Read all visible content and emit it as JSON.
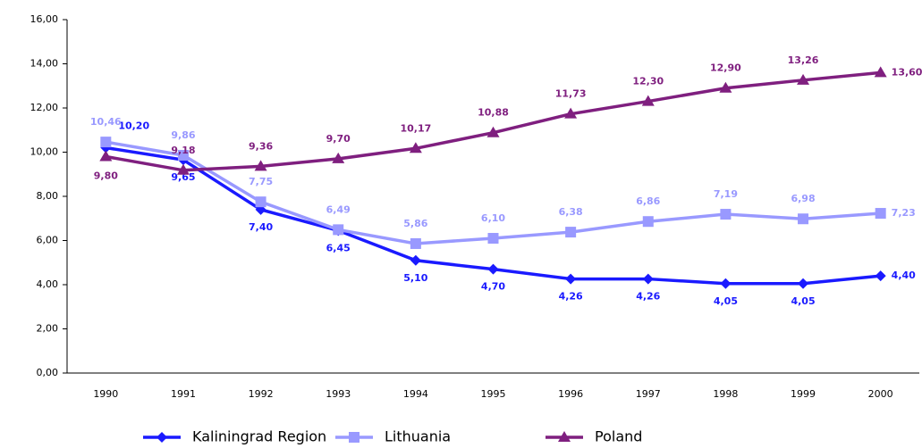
{
  "chart_data": {
    "type": "line",
    "categories": [
      "1990",
      "1991",
      "1992",
      "1993",
      "1994",
      "1995",
      "1996",
      "1997",
      "1998",
      "1999",
      "2000"
    ],
    "ylim": [
      0,
      16
    ],
    "yticks": [
      {
        "value": 0,
        "label": "0,00"
      },
      {
        "value": 2,
        "label": "2,00"
      },
      {
        "value": 4,
        "label": "4,00"
      },
      {
        "value": 6,
        "label": "6,00"
      },
      {
        "value": 8,
        "label": "8,00"
      },
      {
        "value": 10,
        "label": "10,00"
      },
      {
        "value": 12,
        "label": "12,00"
      },
      {
        "value": 14,
        "label": "14,00"
      },
      {
        "value": 16,
        "label": "16,00"
      }
    ],
    "legend": "bottom",
    "series": [
      {
        "name": "Kaliningrad Region",
        "color": "#1a1aff",
        "marker": "diamond",
        "values": [
          10.2,
          9.65,
          7.4,
          6.45,
          5.1,
          4.7,
          4.26,
          4.26,
          4.05,
          4.05,
          4.4
        ],
        "value_labels": [
          "10,20",
          "9,65",
          "7,40",
          "6,45",
          "5,10",
          "4,70",
          "4,26",
          "4,26",
          "4,05",
          "4,05",
          "4,40"
        ]
      },
      {
        "name": "Lithuania",
        "color": "#9999ff",
        "marker": "square",
        "values": [
          10.46,
          9.86,
          7.75,
          6.49,
          5.86,
          6.1,
          6.38,
          6.86,
          7.19,
          6.98,
          7.23
        ],
        "value_labels": [
          "10,46",
          "9,86",
          "7,75",
          "6,49",
          "5,86",
          "6,10",
          "6,38",
          "6,86",
          "7,19",
          "6,98",
          "7,23"
        ]
      },
      {
        "name": "Poland",
        "color": "#7f1f7f",
        "marker": "triangle",
        "values": [
          9.8,
          9.18,
          9.36,
          9.7,
          10.17,
          10.88,
          11.73,
          12.3,
          12.9,
          13.26,
          13.6
        ],
        "value_labels": [
          "9,80",
          "9,18",
          "9,36",
          "9,70",
          "10,17",
          "10,88",
          "11,73",
          "12,30",
          "12,90",
          "13,26",
          "13,60"
        ]
      }
    ]
  }
}
